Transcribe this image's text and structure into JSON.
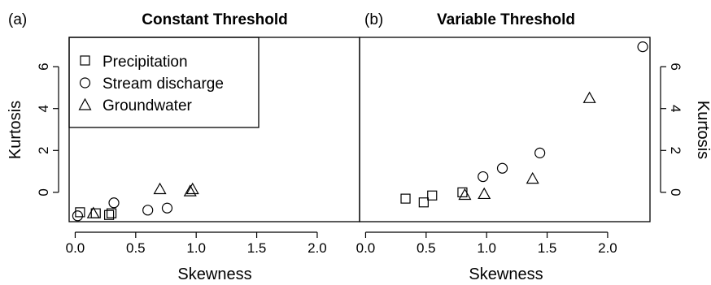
{
  "figure": {
    "panel_a_label": "(a)",
    "panel_b_label": "(b)"
  },
  "chart_data": [
    {
      "type": "scatter",
      "title": "Constant Threshold",
      "xlabel": "Skewness",
      "ylabel": "Kurtosis",
      "xlim": [
        -0.05,
        2.35
      ],
      "ylim": [
        -1.4,
        7.4
      ],
      "xticks": [
        "0.0",
        "0.5",
        "1.0",
        "1.5",
        "2.0"
      ],
      "yticks": [
        "0",
        "2",
        "4",
        "6"
      ],
      "legend": {
        "position": "top-left",
        "entries": [
          "Precipitation",
          "Stream discharge",
          "Groundwater"
        ]
      },
      "series": [
        {
          "name": "Precipitation",
          "marker": "square",
          "points": [
            [
              0.04,
              -0.95
            ],
            [
              0.17,
              -1.0
            ],
            [
              0.28,
              -1.08
            ],
            [
              0.3,
              -1.0
            ]
          ]
        },
        {
          "name": "Stream discharge",
          "marker": "circle",
          "points": [
            [
              0.02,
              -1.12
            ],
            [
              0.32,
              -0.5
            ],
            [
              0.6,
              -0.85
            ],
            [
              0.76,
              -0.75
            ]
          ]
        },
        {
          "name": "Groundwater",
          "marker": "triangle",
          "points": [
            [
              0.15,
              -1.0
            ],
            [
              0.7,
              0.15
            ],
            [
              0.95,
              0.05
            ],
            [
              0.97,
              0.15
            ]
          ]
        }
      ]
    },
    {
      "type": "scatter",
      "title": "Variable Threshold",
      "xlabel": "Skewness",
      "ylabel": "Kurtosis",
      "xlim": [
        -0.05,
        2.35
      ],
      "ylim": [
        -1.4,
        7.4
      ],
      "xticks": [
        "0.0",
        "0.5",
        "1.0",
        "1.5",
        "2.0"
      ],
      "yticks": [
        "0",
        "2",
        "4",
        "6"
      ],
      "series": [
        {
          "name": "Precipitation",
          "marker": "square",
          "points": [
            [
              0.33,
              -0.3
            ],
            [
              0.48,
              -0.48
            ],
            [
              0.55,
              -0.15
            ],
            [
              0.8,
              0.0
            ]
          ]
        },
        {
          "name": "Stream discharge",
          "marker": "circle",
          "points": [
            [
              0.97,
              0.75
            ],
            [
              1.13,
              1.15
            ],
            [
              1.44,
              1.88
            ],
            [
              2.29,
              6.95
            ]
          ]
        },
        {
          "name": "Groundwater",
          "marker": "triangle",
          "points": [
            [
              0.82,
              -0.12
            ],
            [
              0.98,
              -0.08
            ],
            [
              1.38,
              0.65
            ],
            [
              1.85,
              4.5
            ]
          ]
        }
      ]
    }
  ]
}
